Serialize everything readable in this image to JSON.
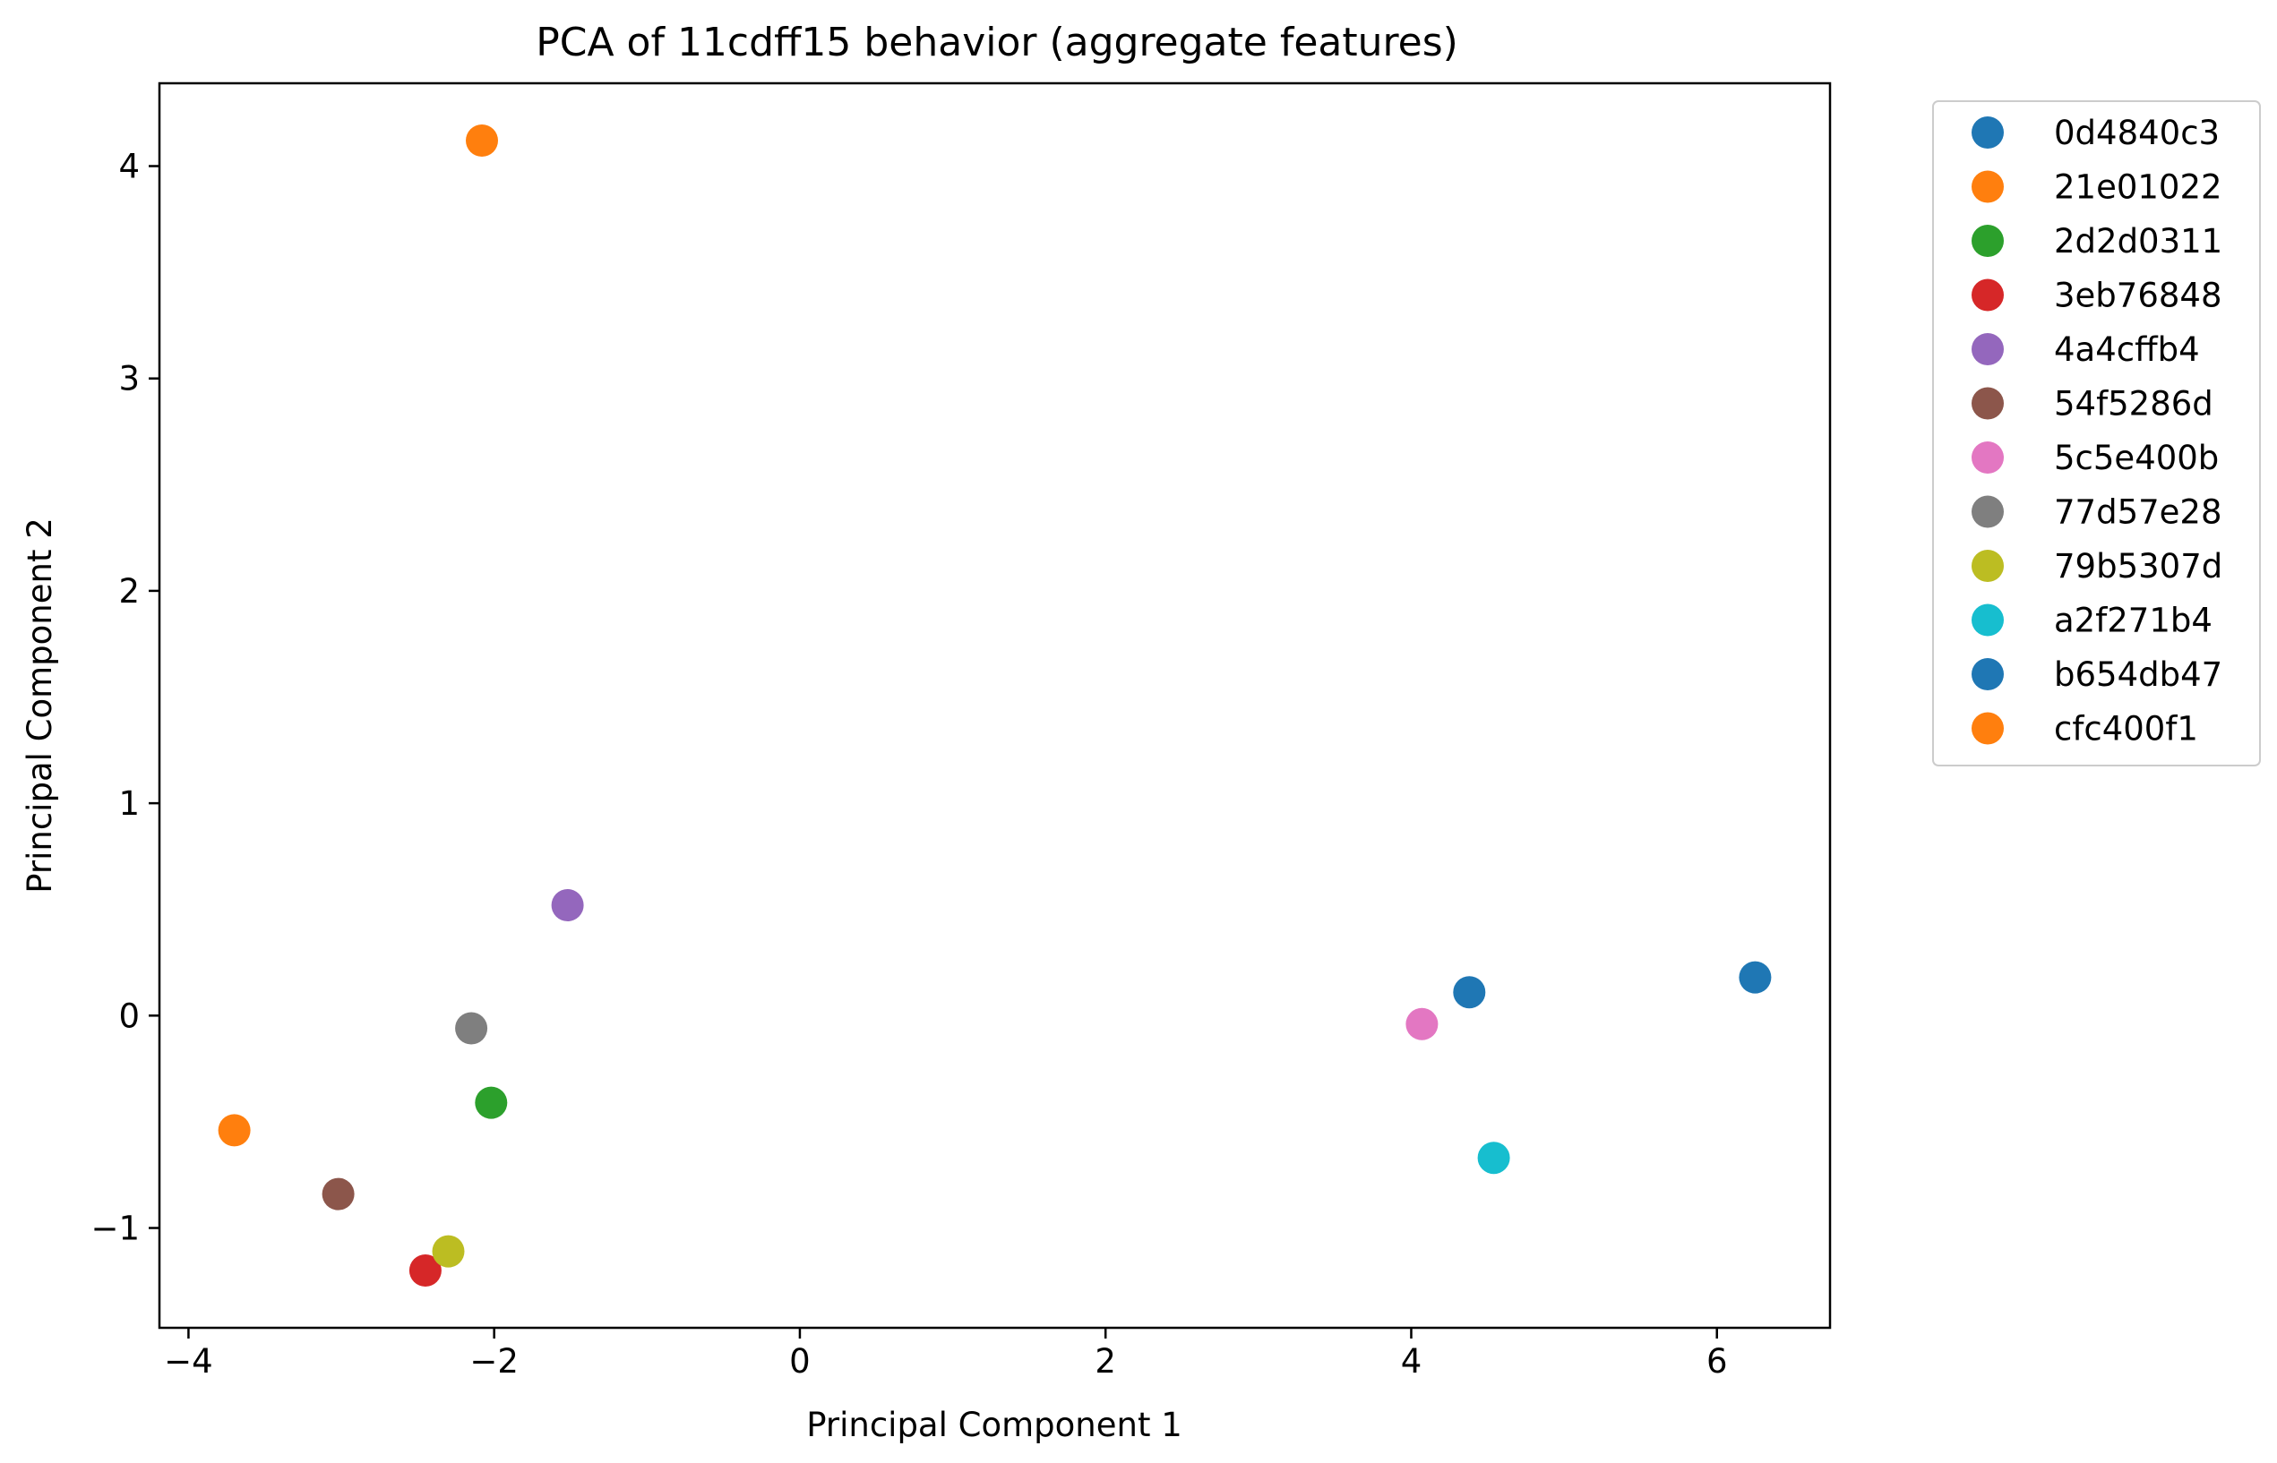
{
  "chart_data": {
    "type": "scatter",
    "title": "PCA of 11cdff15 behavior (aggregate features)",
    "xlabel": "Principal Component 1",
    "ylabel": "Principal Component 2",
    "xlim": [
      -4.19,
      6.74
    ],
    "ylim": [
      -1.47,
      4.39
    ],
    "xticks": [
      -4,
      -2,
      0,
      2,
      4,
      6
    ],
    "xtick_labels": [
      "−4",
      "−2",
      "0",
      "2",
      "4",
      "6"
    ],
    "yticks": [
      -1,
      0,
      1,
      2,
      3,
      4
    ],
    "ytick_labels": [
      "−1",
      "0",
      "1",
      "2",
      "3",
      "4"
    ],
    "grid": false,
    "legend_position": "outside-top-right",
    "series": [
      {
        "name": "0d4840c3",
        "color": "#1f77b4",
        "x": 4.38,
        "y": 0.11
      },
      {
        "name": "21e01022",
        "color": "#ff7f0e",
        "x": -2.08,
        "y": 4.12
      },
      {
        "name": "2d2d0311",
        "color": "#2ca02c",
        "x": -2.02,
        "y": -0.41
      },
      {
        "name": "3eb76848",
        "color": "#d62728",
        "x": -2.45,
        "y": -1.2
      },
      {
        "name": "4a4cffb4",
        "color": "#9467bd",
        "x": -1.52,
        "y": 0.52
      },
      {
        "name": "54f5286d",
        "color": "#8c564b",
        "x": -3.02,
        "y": -0.84
      },
      {
        "name": "5c5e400b",
        "color": "#e377c2",
        "x": 4.07,
        "y": -0.04
      },
      {
        "name": "77d57e28",
        "color": "#7f7f7f",
        "x": -2.15,
        "y": -0.06
      },
      {
        "name": "79b5307d",
        "color": "#bcbd22",
        "x": -2.3,
        "y": -1.11
      },
      {
        "name": "a2f271b4",
        "color": "#17becf",
        "x": 4.54,
        "y": -0.67
      },
      {
        "name": "b654db47",
        "color": "#1f77b4",
        "x": 6.25,
        "y": 0.18
      },
      {
        "name": "cfc400f1",
        "color": "#ff7f0e",
        "x": -3.7,
        "y": -0.54
      }
    ]
  }
}
